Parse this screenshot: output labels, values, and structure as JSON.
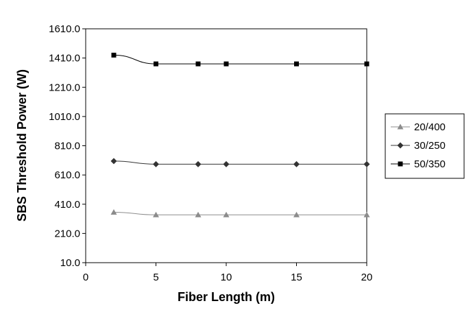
{
  "chart_data": {
    "type": "line",
    "xlabel": "Fiber Length (m)",
    "ylabel": "SBS Threshold Power (W)",
    "xlim": [
      0,
      20
    ],
    "ylim": [
      10,
      1610
    ],
    "xticks": [
      "0",
      "5",
      "10",
      "15",
      "20"
    ],
    "yticks": [
      "10.0",
      "210.0",
      "410.0",
      "610.0",
      "810.0",
      "1010.0",
      "1210.0",
      "1410.0",
      "1610.0"
    ],
    "grid": false,
    "legend_position": "right",
    "x": [
      2,
      5,
      8,
      10,
      15,
      20
    ],
    "series": [
      {
        "name": "20/400",
        "marker": "triangle",
        "color": "#8c8c8c",
        "values": [
          355,
          337,
          337,
          337,
          337,
          337
        ]
      },
      {
        "name": "30/250",
        "marker": "diamond",
        "color": "#333333",
        "values": [
          705,
          684,
          684,
          684,
          684,
          684
        ]
      },
      {
        "name": "50/350",
        "marker": "square",
        "color": "#000000",
        "values": [
          1430,
          1370,
          1370,
          1370,
          1370,
          1370
        ]
      }
    ]
  }
}
